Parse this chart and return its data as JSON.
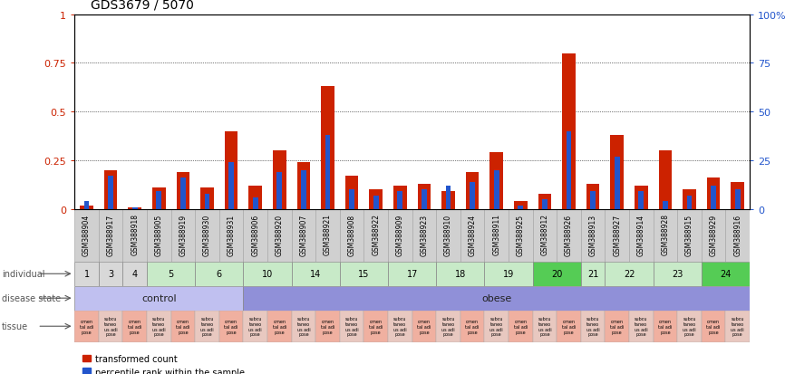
{
  "title": "GDS3679 / 5070",
  "samples": [
    "GSM388904",
    "GSM388917",
    "GSM388918",
    "GSM388905",
    "GSM388919",
    "GSM388930",
    "GSM388931",
    "GSM388906",
    "GSM388920",
    "GSM388907",
    "GSM388921",
    "GSM388908",
    "GSM388922",
    "GSM388909",
    "GSM388923",
    "GSM388910",
    "GSM388924",
    "GSM388911",
    "GSM388925",
    "GSM388912",
    "GSM388926",
    "GSM388913",
    "GSM388927",
    "GSM388914",
    "GSM388928",
    "GSM388915",
    "GSM388929",
    "GSM388916"
  ],
  "red_values": [
    0.02,
    0.2,
    0.01,
    0.11,
    0.19,
    0.11,
    0.4,
    0.12,
    0.3,
    0.24,
    0.63,
    0.17,
    0.1,
    0.12,
    0.13,
    0.09,
    0.19,
    0.29,
    0.04,
    0.08,
    0.8,
    0.13,
    0.38,
    0.12,
    0.3,
    0.1,
    0.16,
    0.14
  ],
  "blue_values": [
    0.04,
    0.17,
    0.01,
    0.09,
    0.16,
    0.08,
    0.24,
    0.06,
    0.19,
    0.2,
    0.38,
    0.1,
    0.07,
    0.09,
    0.1,
    0.12,
    0.14,
    0.2,
    0.02,
    0.05,
    0.4,
    0.09,
    0.27,
    0.09,
    0.04,
    0.07,
    0.12,
    0.1
  ],
  "individuals": [
    {
      "label": "1",
      "start": 0,
      "end": 1,
      "color": "#d8d8d8"
    },
    {
      "label": "3",
      "start": 1,
      "end": 2,
      "color": "#d8d8d8"
    },
    {
      "label": "4",
      "start": 2,
      "end": 3,
      "color": "#d8d8d8"
    },
    {
      "label": "5",
      "start": 3,
      "end": 5,
      "color": "#c8eac8"
    },
    {
      "label": "6",
      "start": 5,
      "end": 7,
      "color": "#c8eac8"
    },
    {
      "label": "10",
      "start": 7,
      "end": 9,
      "color": "#c8eac8"
    },
    {
      "label": "14",
      "start": 9,
      "end": 11,
      "color": "#c8eac8"
    },
    {
      "label": "15",
      "start": 11,
      "end": 13,
      "color": "#c8eac8"
    },
    {
      "label": "17",
      "start": 13,
      "end": 15,
      "color": "#c8eac8"
    },
    {
      "label": "18",
      "start": 15,
      "end": 17,
      "color": "#c8eac8"
    },
    {
      "label": "19",
      "start": 17,
      "end": 19,
      "color": "#c8eac8"
    },
    {
      "label": "20",
      "start": 19,
      "end": 21,
      "color": "#55cc55"
    },
    {
      "label": "21",
      "start": 21,
      "end": 22,
      "color": "#c8eac8"
    },
    {
      "label": "22",
      "start": 22,
      "end": 24,
      "color": "#c8eac8"
    },
    {
      "label": "23",
      "start": 24,
      "end": 26,
      "color": "#c8eac8"
    },
    {
      "label": "24",
      "start": 26,
      "end": 28,
      "color": "#55cc55"
    }
  ],
  "disease_control": {
    "start": 0,
    "end": 7,
    "label": "control",
    "color": "#c0c0f0"
  },
  "disease_obese": {
    "start": 7,
    "end": 28,
    "label": "obese",
    "color": "#9090d8"
  },
  "tissue_colors": [
    "#f0b0a0",
    "#e8c8c0"
  ],
  "red_color": "#cc2200",
  "blue_color": "#2255cc",
  "grid_color": "#888888",
  "yticks_left": [
    0,
    0.25,
    0.5,
    0.75,
    1.0
  ],
  "yticks_right": [
    0,
    25,
    50,
    75,
    100
  ],
  "sample_box_color": "#d0d0d0",
  "label_color": "#555555"
}
